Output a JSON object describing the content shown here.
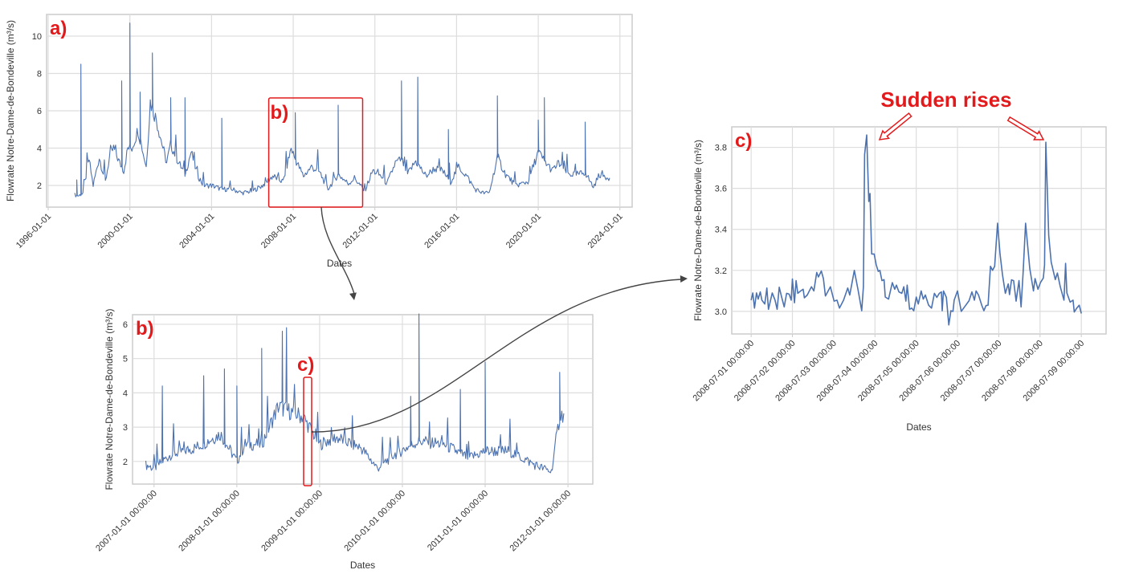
{
  "chart_data": [
    {
      "id": "a",
      "type": "line",
      "panel_label": "a)",
      "xlabel": "Dates",
      "ylabel": "Flowrate Notre-Dame-de-Bondeville  (m³/s)",
      "xlim": [
        1995.92,
        2024.6
      ],
      "ylim": [
        0.84,
        11.16
      ],
      "xticks": [
        {
          "v": 1996,
          "label": "1996-01-01"
        },
        {
          "v": 2000,
          "label": "2000-01-01"
        },
        {
          "v": 2004,
          "label": "2004-01-01"
        },
        {
          "v": 2008,
          "label": "2008-01-01"
        },
        {
          "v": 2012,
          "label": "2012-01-01"
        },
        {
          "v": 2016,
          "label": "2016-01-01"
        },
        {
          "v": 2020,
          "label": "2020-01-01"
        },
        {
          "v": 2024,
          "label": "2024-01-01"
        }
      ],
      "yticks": [
        {
          "v": 2,
          "label": "2"
        },
        {
          "v": 4,
          "label": "4"
        },
        {
          "v": 6,
          "label": "6"
        },
        {
          "v": 8,
          "label": "8"
        },
        {
          "v": 10,
          "label": "10"
        }
      ],
      "grid": true,
      "color": "#4c72b0",
      "series": [
        [
          1997.3,
          1.5
        ],
        [
          1997.5,
          1.45
        ],
        [
          1997.7,
          1.6
        ],
        [
          1998.0,
          3.4
        ],
        [
          1998.2,
          2.0
        ],
        [
          1998.5,
          3.5
        ],
        [
          1998.8,
          2.2
        ],
        [
          1999.0,
          3.5
        ],
        [
          1999.2,
          4.0
        ],
        [
          1999.5,
          3.2
        ],
        [
          1999.7,
          2.8
        ],
        [
          1999.9,
          4.0
        ],
        [
          2000.1,
          4.0
        ],
        [
          2000.4,
          5.0
        ],
        [
          2000.8,
          3.0
        ],
        [
          2001.0,
          6.5
        ],
        [
          2001.3,
          5.5
        ],
        [
          2001.8,
          3.2
        ],
        [
          2002.0,
          4.2
        ],
        [
          2002.4,
          3.2
        ],
        [
          2002.7,
          2.6
        ],
        [
          2003.0,
          3.8
        ],
        [
          2003.3,
          2.6
        ],
        [
          2003.6,
          2.0
        ],
        [
          2004.0,
          2.0
        ],
        [
          2004.5,
          1.8
        ],
        [
          2005.0,
          1.8
        ],
        [
          2005.5,
          1.6
        ],
        [
          2006.0,
          1.7
        ],
        [
          2006.5,
          2.0
        ],
        [
          2007.0,
          2.5
        ],
        [
          2007.5,
          2.2
        ],
        [
          2007.9,
          4.0
        ],
        [
          2008.1,
          3.4
        ],
        [
          2008.5,
          2.5
        ],
        [
          2008.9,
          3.0
        ],
        [
          2009.3,
          2.7
        ],
        [
          2009.7,
          1.8
        ],
        [
          2010.2,
          2.6
        ],
        [
          2010.7,
          2.1
        ],
        [
          2011.0,
          2.4
        ],
        [
          2011.5,
          1.7
        ],
        [
          2011.9,
          2.8
        ],
        [
          2012.3,
          2.5
        ],
        [
          2012.6,
          2.1
        ],
        [
          2013.0,
          3.2
        ],
        [
          2013.3,
          3.4
        ],
        [
          2013.6,
          2.6
        ],
        [
          2014.0,
          3.3
        ],
        [
          2014.5,
          2.5
        ],
        [
          2014.9,
          2.9
        ],
        [
          2015.3,
          2.8
        ],
        [
          2015.7,
          2.2
        ],
        [
          2016.1,
          3.0
        ],
        [
          2016.5,
          2.5
        ],
        [
          2016.9,
          1.8
        ],
        [
          2017.3,
          1.6
        ],
        [
          2017.6,
          1.6
        ],
        [
          2018.0,
          3.5
        ],
        [
          2018.4,
          2.6
        ],
        [
          2018.9,
          2.0
        ],
        [
          2019.5,
          2.2
        ],
        [
          2020.0,
          3.8
        ],
        [
          2020.3,
          3.3
        ],
        [
          2020.7,
          2.8
        ],
        [
          2021.0,
          3.2
        ],
        [
          2021.5,
          2.6
        ],
        [
          2022.0,
          2.6
        ],
        [
          2022.3,
          2.7
        ],
        [
          2022.7,
          1.9
        ],
        [
          2023.0,
          2.6
        ],
        [
          2023.5,
          2.4
        ]
      ],
      "spikes": [
        [
          1997.4,
          2.3
        ],
        [
          1997.6,
          8.5
        ],
        [
          1999.6,
          7.6
        ],
        [
          2000.0,
          10.7
        ],
        [
          2000.5,
          7.0
        ],
        [
          2001.1,
          9.1
        ],
        [
          2002.0,
          6.7
        ],
        [
          2002.7,
          6.7
        ],
        [
          2004.5,
          5.6
        ],
        [
          2008.1,
          5.9
        ],
        [
          2010.2,
          6.3
        ],
        [
          2013.3,
          7.6
        ],
        [
          2014.1,
          7.8
        ],
        [
          2015.6,
          5.0
        ],
        [
          2018.0,
          6.8
        ],
        [
          2020.0,
          5.5
        ],
        [
          2020.3,
          6.7
        ],
        [
          2022.3,
          5.4
        ]
      ],
      "highlight": {
        "label": "b)",
        "x": [
          2006.8,
          2011.4
        ]
      }
    },
    {
      "id": "b",
      "type": "line",
      "panel_label": "b)",
      "xlabel": "Dates",
      "ylabel": "Flowrate Notre-Dame-de-Bondeville (m³/s)",
      "xlim": [
        2006.74,
        2012.3
      ],
      "ylim": [
        1.34,
        6.28
      ],
      "xticks": [
        {
          "v": 2007,
          "label": "2007-01-01 00:00:00"
        },
        {
          "v": 2008,
          "label": "2008-01-01 00:00:00"
        },
        {
          "v": 2009,
          "label": "2009-01-01 00:00:00"
        },
        {
          "v": 2010,
          "label": "2010-01-01 00:00:00"
        },
        {
          "v": 2011,
          "label": "2011-01-01 00:00:00"
        },
        {
          "v": 2012,
          "label": "2012-01-01 00:00:00"
        }
      ],
      "yticks": [
        {
          "v": 2,
          "label": "2"
        },
        {
          "v": 3,
          "label": "3"
        },
        {
          "v": 4,
          "label": "4"
        },
        {
          "v": 5,
          "label": "5"
        },
        {
          "v": 6,
          "label": "6"
        }
      ],
      "grid": true,
      "color": "#4c72b0",
      "series": [
        [
          2006.9,
          1.9
        ],
        [
          2007.0,
          1.8
        ],
        [
          2007.2,
          2.2
        ],
        [
          2007.5,
          2.4
        ],
        [
          2007.8,
          2.8
        ],
        [
          2008.0,
          2.0
        ],
        [
          2008.1,
          2.5
        ],
        [
          2008.3,
          2.5
        ],
        [
          2008.5,
          3.6
        ],
        [
          2008.8,
          3.3
        ],
        [
          2009.0,
          2.5
        ],
        [
          2009.2,
          2.7
        ],
        [
          2009.5,
          2.4
        ],
        [
          2009.7,
          1.8
        ],
        [
          2009.9,
          2.2
        ],
        [
          2010.2,
          2.6
        ],
        [
          2010.5,
          2.5
        ],
        [
          2010.8,
          2.1
        ],
        [
          2011.0,
          2.3
        ],
        [
          2011.3,
          2.3
        ],
        [
          2011.6,
          1.9
        ],
        [
          2011.8,
          1.7
        ],
        [
          2011.9,
          3.3
        ],
        [
          2011.95,
          3.4
        ]
      ],
      "spikes": [
        [
          2007.1,
          4.2
        ],
        [
          2007.6,
          4.5
        ],
        [
          2007.85,
          4.7
        ],
        [
          2008.0,
          4.2
        ],
        [
          2008.3,
          5.3
        ],
        [
          2008.55,
          5.8
        ],
        [
          2008.6,
          5.9
        ],
        [
          2010.1,
          3.9
        ],
        [
          2010.2,
          6.3
        ],
        [
          2010.7,
          4.1
        ],
        [
          2011.0,
          4.9
        ],
        [
          2011.9,
          4.6
        ]
      ],
      "highlight": {
        "label": "c)",
        "x": [
          2008.5,
          2008.59
        ]
      }
    },
    {
      "id": "c",
      "type": "line",
      "panel_label": "c)",
      "xlabel": "Dates",
      "ylabel": "Flowrate Notre-Dame-de-Bondeville (m³/s)",
      "x_unit": "days since 2008-07-01 00:00:00",
      "xlim": [
        -0.47,
        8.6
      ],
      "ylim": [
        2.89,
        3.9
      ],
      "xticks": [
        {
          "v": 0,
          "label": "2008-07-01 00:00:00"
        },
        {
          "v": 1,
          "label": "2008-07-02 00:00:00"
        },
        {
          "v": 2,
          "label": "2008-07-03 00:00:00"
        },
        {
          "v": 3,
          "label": "2008-07-04 00:00:00"
        },
        {
          "v": 4,
          "label": "2008-07-05 00:00:00"
        },
        {
          "v": 5,
          "label": "2008-07-06 00:00:00"
        },
        {
          "v": 6,
          "label": "2008-07-07 00:00:00"
        },
        {
          "v": 7,
          "label": "2008-07-08 00:00:00"
        },
        {
          "v": 8,
          "label": "2008-07-09 00:00:00"
        }
      ],
      "yticks": [
        {
          "v": 3.0,
          "label": "3.0"
        },
        {
          "v": 3.2,
          "label": "3.2"
        },
        {
          "v": 3.4,
          "label": "3.4"
        },
        {
          "v": 3.6,
          "label": "3.6"
        },
        {
          "v": 3.8,
          "label": "3.8"
        }
      ],
      "grid": true,
      "color": "#4c72b0",
      "series": [
        [
          0,
          3.055
        ],
        [
          0.04,
          3.09
        ],
        [
          0.08,
          3.016
        ],
        [
          0.13,
          3.09
        ],
        [
          0.17,
          3.06
        ],
        [
          0.22,
          3.095
        ],
        [
          0.26,
          3.055
        ],
        [
          0.33,
          3.036
        ],
        [
          0.38,
          3.114
        ],
        [
          0.42,
          3.01
        ],
        [
          0.51,
          3.09
        ],
        [
          0.58,
          3.055
        ],
        [
          0.63,
          3.01
        ],
        [
          0.68,
          3.118
        ],
        [
          0.74,
          3.068
        ],
        [
          0.8,
          3.022
        ],
        [
          0.86,
          3.088
        ],
        [
          0.92,
          3.084
        ],
        [
          0.97,
          3.055
        ],
        [
          1.0,
          3.158
        ],
        [
          1.05,
          3.042
        ],
        [
          1.09,
          3.15
        ],
        [
          1.13,
          3.088
        ],
        [
          1.2,
          3.1
        ],
        [
          1.26,
          3.108
        ],
        [
          1.29,
          3.066
        ],
        [
          1.36,
          3.08
        ],
        [
          1.46,
          3.12
        ],
        [
          1.52,
          3.1
        ],
        [
          1.59,
          3.19
        ],
        [
          1.63,
          3.168
        ],
        [
          1.7,
          3.197
        ],
        [
          1.75,
          3.16
        ],
        [
          1.8,
          3.075
        ],
        [
          1.92,
          3.12
        ],
        [
          2.01,
          3.05
        ],
        [
          2.08,
          3.055
        ],
        [
          2.14,
          3.016
        ],
        [
          2.24,
          3.055
        ],
        [
          2.34,
          3.114
        ],
        [
          2.39,
          3.08
        ],
        [
          2.5,
          3.2
        ],
        [
          2.6,
          3.095
        ],
        [
          2.68,
          3.003
        ],
        [
          2.72,
          3.12
        ],
        [
          2.75,
          3.765
        ],
        [
          2.8,
          3.86
        ],
        [
          2.85,
          3.536
        ],
        [
          2.88,
          3.575
        ],
        [
          2.92,
          3.28
        ],
        [
          2.98,
          3.28
        ],
        [
          3.03,
          3.228
        ],
        [
          3.08,
          3.195
        ],
        [
          3.12,
          3.2
        ],
        [
          3.17,
          3.15
        ],
        [
          3.22,
          3.155
        ],
        [
          3.25,
          3.07
        ],
        [
          3.33,
          3.06
        ],
        [
          3.42,
          3.14
        ],
        [
          3.48,
          3.108
        ],
        [
          3.52,
          3.128
        ],
        [
          3.58,
          3.095
        ],
        [
          3.65,
          3.088
        ],
        [
          3.7,
          3.12
        ],
        [
          3.75,
          3.05
        ],
        [
          3.78,
          3.128
        ],
        [
          3.84,
          3.01
        ],
        [
          3.89,
          3.016
        ],
        [
          3.94,
          3.003
        ],
        [
          4.0,
          3.07
        ],
        [
          4.05,
          3.036
        ],
        [
          4.12,
          3.1
        ],
        [
          4.17,
          3.06
        ],
        [
          4.22,
          3.08
        ],
        [
          4.3,
          3.03
        ],
        [
          4.37,
          3.016
        ],
        [
          4.44,
          3.088
        ],
        [
          4.5,
          3.068
        ],
        [
          4.56,
          3.088
        ],
        [
          4.61,
          3.095
        ],
        [
          4.63,
          3.003
        ],
        [
          4.66,
          3.1
        ],
        [
          4.73,
          3.068
        ],
        [
          4.79,
          2.934
        ],
        [
          4.84,
          3.003
        ],
        [
          4.89,
          3.0
        ],
        [
          4.92,
          3.055
        ],
        [
          5.0,
          3.1
        ],
        [
          5.09,
          3.0
        ],
        [
          5.17,
          3.022
        ],
        [
          5.28,
          3.052
        ],
        [
          5.35,
          3.095
        ],
        [
          5.41,
          3.055
        ],
        [
          5.45,
          3.1
        ],
        [
          5.51,
          3.08
        ],
        [
          5.59,
          3.028
        ],
        [
          5.64,
          3.003
        ],
        [
          5.69,
          3.028
        ],
        [
          5.74,
          3.03
        ],
        [
          5.8,
          3.22
        ],
        [
          5.85,
          3.2
        ],
        [
          5.9,
          3.22
        ],
        [
          5.97,
          3.43
        ],
        [
          6.03,
          3.28
        ],
        [
          6.09,
          3.18
        ],
        [
          6.16,
          3.088
        ],
        [
          6.23,
          3.134
        ],
        [
          6.26,
          3.082
        ],
        [
          6.31,
          3.154
        ],
        [
          6.36,
          3.15
        ],
        [
          6.42,
          3.05
        ],
        [
          6.49,
          3.15
        ],
        [
          6.54,
          3.022
        ],
        [
          6.59,
          3.187
        ],
        [
          6.65,
          3.43
        ],
        [
          6.75,
          3.21
        ],
        [
          6.84,
          3.1
        ],
        [
          6.88,
          3.16
        ],
        [
          6.95,
          3.108
        ],
        [
          7.01,
          3.14
        ],
        [
          7.08,
          3.163
        ],
        [
          7.11,
          3.226
        ],
        [
          7.14,
          3.825
        ],
        [
          7.21,
          3.37
        ],
        [
          7.27,
          3.24
        ],
        [
          7.37,
          3.155
        ],
        [
          7.42,
          3.187
        ],
        [
          7.49,
          3.12
        ],
        [
          7.58,
          3.055
        ],
        [
          7.62,
          3.234
        ],
        [
          7.65,
          3.09
        ],
        [
          7.73,
          3.045
        ],
        [
          7.8,
          3.055
        ],
        [
          7.83,
          2.997
        ],
        [
          7.89,
          3.016
        ],
        [
          7.95,
          3.03
        ],
        [
          8.0,
          2.99
        ]
      ],
      "annotation": {
        "text": "Sudden rises",
        "targets": [
          [
            2.85,
            3.86
          ],
          [
            7.0,
            3.83
          ]
        ]
      }
    }
  ],
  "colors": {
    "line": "#4c72b0",
    "accent": "#e31a1c",
    "grid": "#dddddd",
    "connector": "#444444"
  }
}
